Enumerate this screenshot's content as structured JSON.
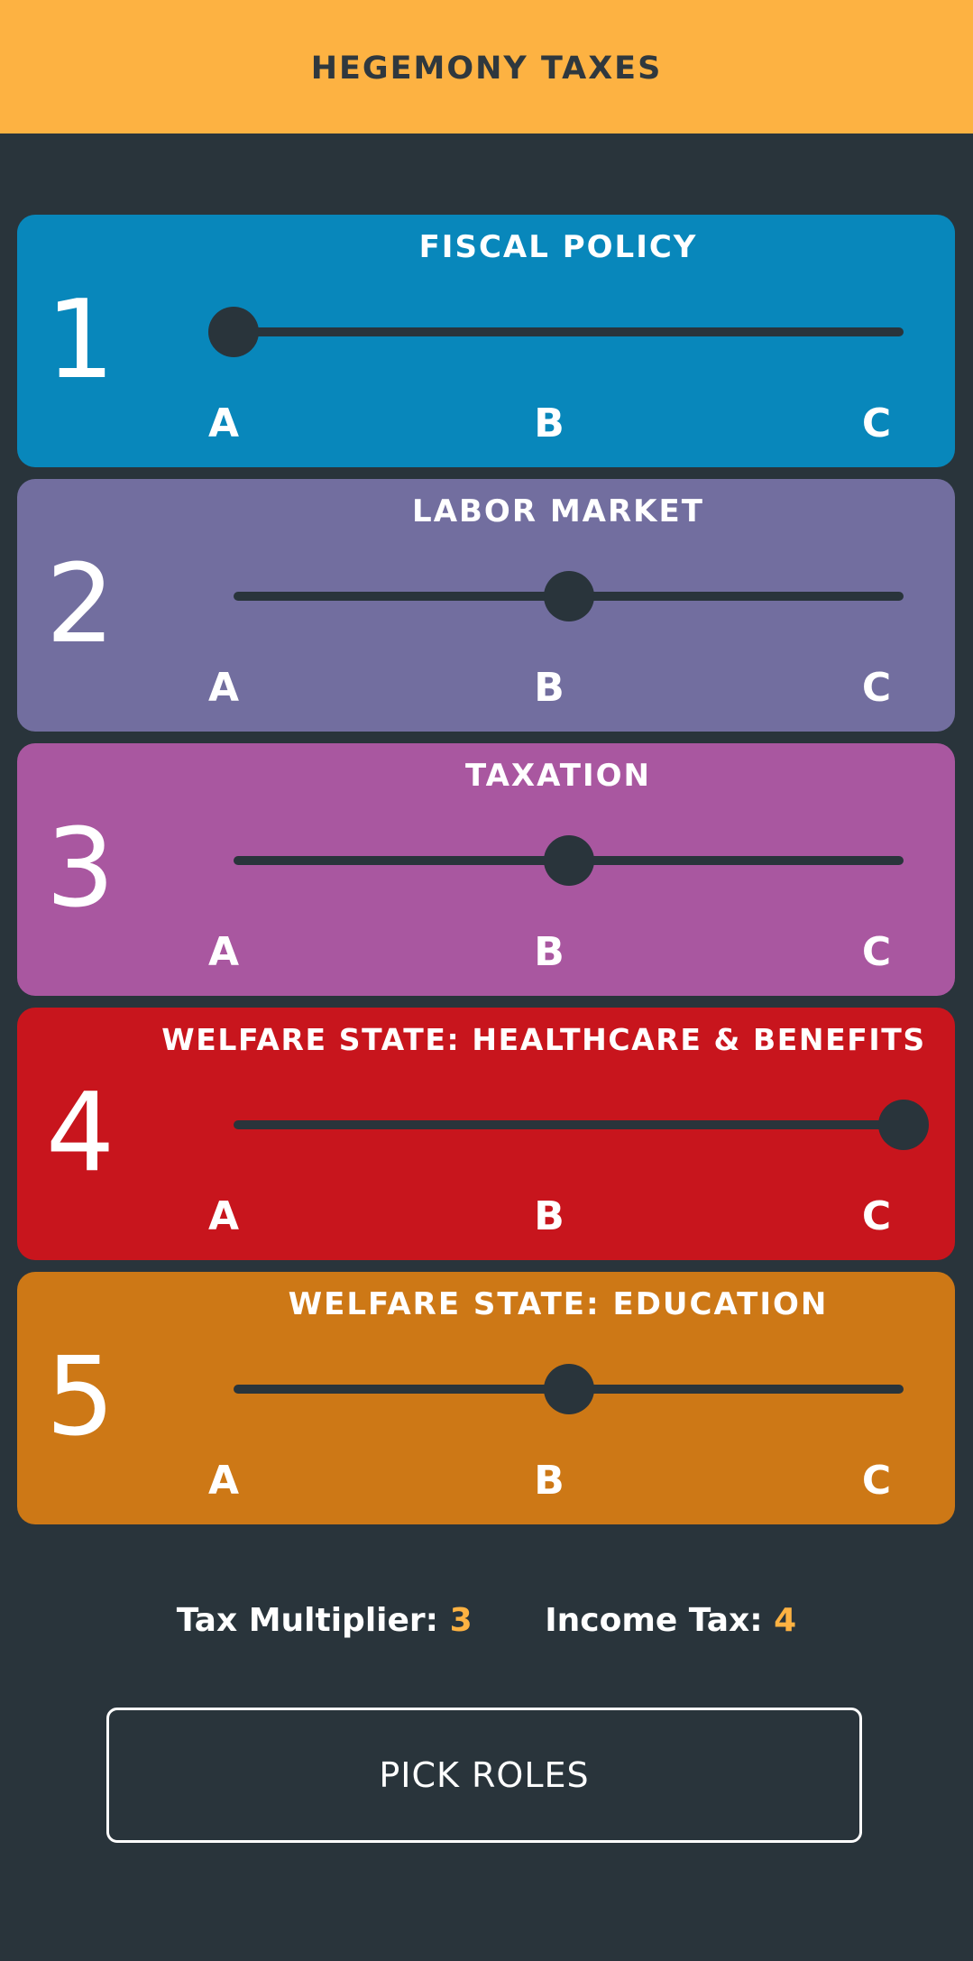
{
  "header": {
    "title": "HEGEMONY TAXES"
  },
  "policies": [
    {
      "number": "1",
      "title": "FISCAL POLICY",
      "color": "#0887bb",
      "options": [
        "A",
        "B",
        "C"
      ],
      "selected_index": 0,
      "selected_label": "A"
    },
    {
      "number": "2",
      "title": "LABOR MARKET",
      "color": "#726e9f",
      "options": [
        "A",
        "B",
        "C"
      ],
      "selected_index": 1,
      "selected_label": "B"
    },
    {
      "number": "3",
      "title": "TAXATION",
      "color": "#a957a0",
      "options": [
        "A",
        "B",
        "C"
      ],
      "selected_index": 1,
      "selected_label": "B"
    },
    {
      "number": "4",
      "title": "WELFARE STATE: HEALTHCARE & BENEFITS",
      "color": "#c8151d",
      "options": [
        "A",
        "B",
        "C"
      ],
      "selected_index": 2,
      "selected_label": "C"
    },
    {
      "number": "5",
      "title": "WELFARE STATE: EDUCATION",
      "color": "#cd7816",
      "options": [
        "A",
        "B",
        "C"
      ],
      "selected_index": 1,
      "selected_label": "B"
    }
  ],
  "stats": {
    "tax_multiplier_label": "Tax Multiplier:",
    "tax_multiplier_value": "3",
    "income_tax_label": "Income Tax:",
    "income_tax_value": "4"
  },
  "actions": {
    "pick_roles_label": "PICK ROLES"
  },
  "theme": {
    "background": "#29343b",
    "header": "#fdb242",
    "accent": "#fdb242"
  }
}
